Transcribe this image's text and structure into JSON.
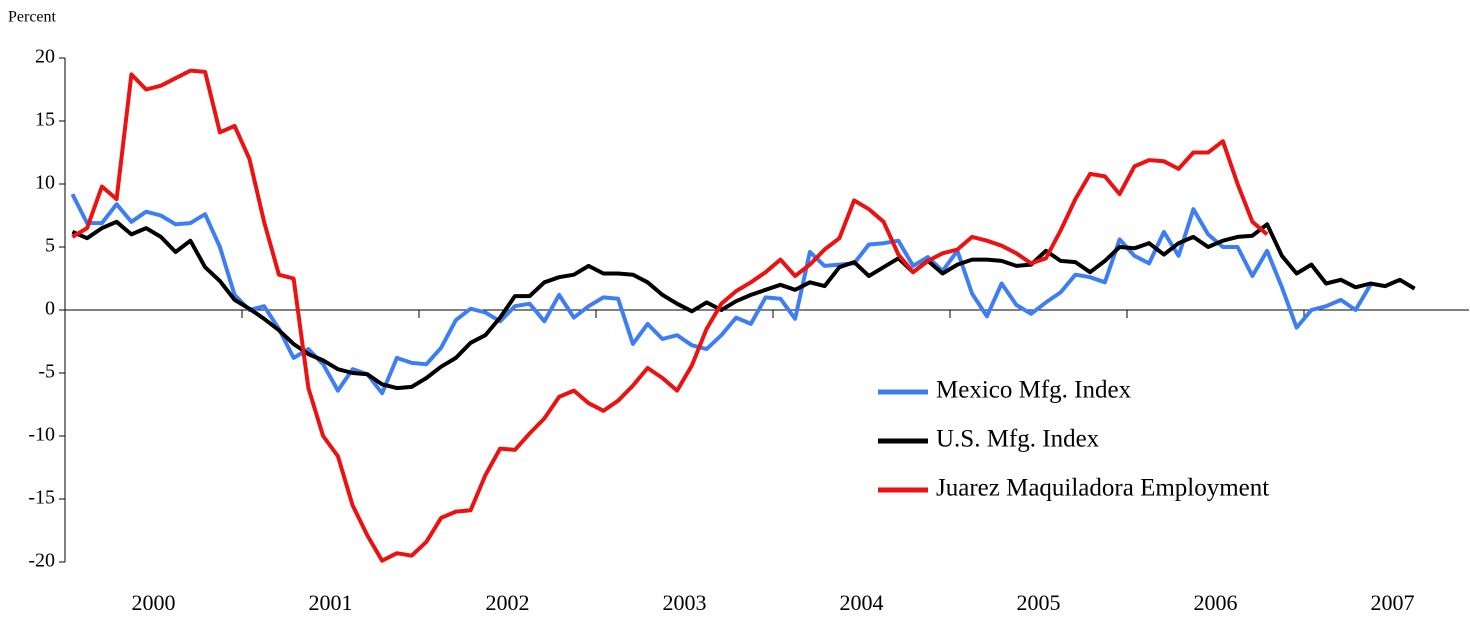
{
  "chart_data": {
    "type": "line",
    "ylabel": "Percent",
    "categories": [
      null,
      null,
      null,
      null,
      null,
      null,
      "2000",
      null,
      null,
      null,
      null,
      null,
      null,
      null,
      null,
      null,
      null,
      null,
      "2001",
      null,
      null,
      null,
      null,
      null,
      null,
      null,
      null,
      null,
      null,
      null,
      "2002",
      null,
      null,
      null,
      null,
      null,
      null,
      null,
      null,
      null,
      null,
      null,
      "2003",
      null,
      null,
      null,
      null,
      null,
      null,
      null,
      null,
      null,
      null,
      null,
      "2004",
      null,
      null,
      null,
      null,
      null,
      null,
      null,
      null,
      null,
      null,
      null,
      "2005",
      null,
      null,
      null,
      null,
      null,
      null,
      null,
      null,
      null,
      null,
      null,
      "2006",
      null,
      null,
      null,
      null,
      null,
      null,
      null,
      null,
      null,
      null,
      null,
      "2007",
      null
    ],
    "series": [
      {
        "name": "Mexico Mfg. Index",
        "color": "#3d7ef5",
        "values": [
          9.2,
          6.9,
          6.9,
          8.4,
          7.0,
          7.8,
          7.5,
          6.8,
          6.9,
          7.6,
          5.0,
          1.2,
          0.0,
          0.3,
          -1.5,
          -3.8,
          -3.1,
          -4.3,
          -6.4,
          -4.7,
          -5.1,
          -6.6,
          -3.8,
          -4.2,
          -4.3,
          -3.0,
          -0.8,
          0.1,
          -0.2,
          -0.9,
          0.3,
          0.5,
          -0.9,
          1.2,
          -0.6,
          0.3,
          1.0,
          0.9,
          -2.7,
          -1.1,
          -2.3,
          -2.0,
          -2.8,
          -3.1,
          -2.0,
          -0.6,
          -1.1,
          1.0,
          0.9,
          -0.7,
          4.6,
          3.5,
          3.6,
          3.7,
          5.2,
          5.3,
          5.5,
          3.5,
          4.2,
          3.1,
          4.7,
          1.3,
          -0.5,
          2.1,
          0.4,
          -0.3,
          0.6,
          1.4,
          2.8,
          2.6,
          2.2,
          5.6,
          4.3,
          3.7,
          6.2,
          4.3,
          8.0,
          6.0,
          5.0,
          5.0,
          2.7,
          4.7,
          1.8,
          -1.4,
          0.0,
          0.3,
          0.8,
          0.0,
          2.0,
          null,
          null,
          null
        ]
      },
      {
        "name": "U.S. Mfg. Index",
        "color": "#000000",
        "values": [
          6.2,
          5.7,
          6.5,
          7.0,
          6.0,
          6.5,
          5.8,
          4.6,
          5.5,
          3.4,
          2.3,
          0.8,
          0.1,
          -0.7,
          -1.6,
          -2.7,
          -3.5,
          -4.0,
          -4.7,
          -5.0,
          -5.1,
          -5.9,
          -6.2,
          -6.1,
          -5.4,
          -4.5,
          -3.8,
          -2.6,
          -2.0,
          -0.6,
          1.1,
          1.1,
          2.2,
          2.6,
          2.8,
          3.5,
          2.9,
          2.9,
          2.8,
          2.2,
          1.2,
          0.5,
          -0.1,
          0.6,
          0.0,
          0.7,
          1.2,
          1.6,
          2.0,
          1.6,
          2.2,
          1.9,
          3.4,
          3.8,
          2.7,
          3.4,
          4.1,
          3.0,
          3.9,
          2.9,
          3.6,
          4.0,
          4.0,
          3.9,
          3.5,
          3.6,
          4.7,
          3.9,
          3.8,
          3.0,
          3.9,
          5.0,
          4.9,
          5.3,
          4.4,
          5.3,
          5.8,
          5.0,
          5.5,
          5.8,
          5.9,
          6.8,
          4.3,
          2.9,
          3.6,
          2.1,
          2.4,
          1.8,
          2.1,
          1.9,
          2.4,
          1.7
        ]
      },
      {
        "name": "Juarez Maquiladora Employment",
        "color": "#ee1111",
        "values": [
          5.8,
          6.5,
          9.8,
          8.8,
          18.7,
          17.5,
          17.8,
          18.4,
          19.0,
          18.9,
          14.1,
          14.6,
          12.0,
          7.0,
          2.8,
          2.5,
          -6.2,
          -10.0,
          -11.6,
          -15.5,
          -17.9,
          -19.9,
          -19.3,
          -19.5,
          -18.4,
          -16.5,
          -16.0,
          -15.9,
          -13.1,
          -11.0,
          -11.1,
          -9.8,
          -8.6,
          -6.9,
          -6.4,
          -7.4,
          -8.0,
          -7.2,
          -6.0,
          -4.6,
          -5.4,
          -6.4,
          -4.4,
          -1.5,
          0.5,
          1.5,
          2.2,
          3.0,
          4.0,
          2.7,
          3.6,
          4.8,
          5.7,
          8.7,
          8.0,
          7.0,
          4.4,
          3.0,
          3.9,
          4.5,
          4.8,
          5.8,
          5.5,
          5.1,
          4.5,
          3.7,
          4.1,
          6.3,
          8.8,
          10.8,
          10.6,
          9.2,
          11.4,
          11.9,
          11.8,
          11.2,
          12.5,
          12.5,
          13.4,
          10.0,
          7.0,
          6.0,
          null,
          null,
          null,
          null,
          null,
          null,
          null,
          null,
          null,
          null
        ]
      }
    ],
    "ylim": [
      -20,
      20
    ],
    "yticks": [
      -20,
      -15,
      -10,
      -5,
      0,
      5,
      10,
      15,
      20
    ],
    "legend": "right"
  }
}
